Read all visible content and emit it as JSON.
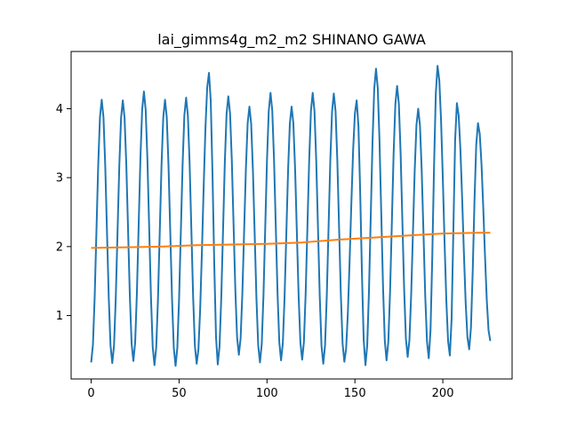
{
  "chart_data": {
    "type": "line",
    "title": "lai_gimms4g_m2_m2 SHINANO GAWA",
    "xlabel": "",
    "ylabel": "",
    "xlim": [
      -11.4,
      239.4
    ],
    "ylim": [
      0.08,
      4.83
    ],
    "x_ticks": [
      0,
      50,
      100,
      150,
      200
    ],
    "y_ticks": [
      1,
      2,
      3,
      4
    ],
    "grid": false,
    "colors": {
      "seasonal": "#1f77b4",
      "trend": "#ff7f0e"
    },
    "peak_x": [
      6,
      18,
      30,
      42,
      54,
      67,
      78,
      90,
      102,
      114,
      126,
      138,
      151,
      162,
      174,
      186,
      197,
      208,
      220
    ],
    "peak_y": [
      4.13,
      4.12,
      4.25,
      4.13,
      4.16,
      4.52,
      4.18,
      4.03,
      4.23,
      4.03,
      4.23,
      4.22,
      4.12,
      4.58,
      4.33,
      4.0,
      4.62,
      4.08,
      3.79
    ],
    "trough_x": [
      0,
      12,
      24,
      36,
      48,
      60,
      72,
      84,
      96,
      108,
      120,
      132,
      144,
      156,
      168,
      180,
      192,
      204,
      215,
      227
    ],
    "trough_y": [
      0.32,
      0.31,
      0.34,
      0.28,
      0.27,
      0.3,
      0.29,
      0.43,
      0.32,
      0.35,
      0.36,
      0.3,
      0.33,
      0.28,
      0.35,
      0.4,
      0.38,
      0.42,
      0.51,
      0.63
    ],
    "series": [
      {
        "values_note": "",
        "x": [],
        "y": []
      },
      {
        "x": [
          0,
          20,
          40,
          60,
          80,
          100,
          120,
          140,
          160,
          180,
          200,
          220,
          227
        ],
        "y": [
          1.98,
          1.99,
          2.0,
          2.02,
          2.03,
          2.04,
          2.06,
          2.1,
          2.13,
          2.16,
          2.19,
          2.2,
          2.2
        ]
      }
    ]
  }
}
